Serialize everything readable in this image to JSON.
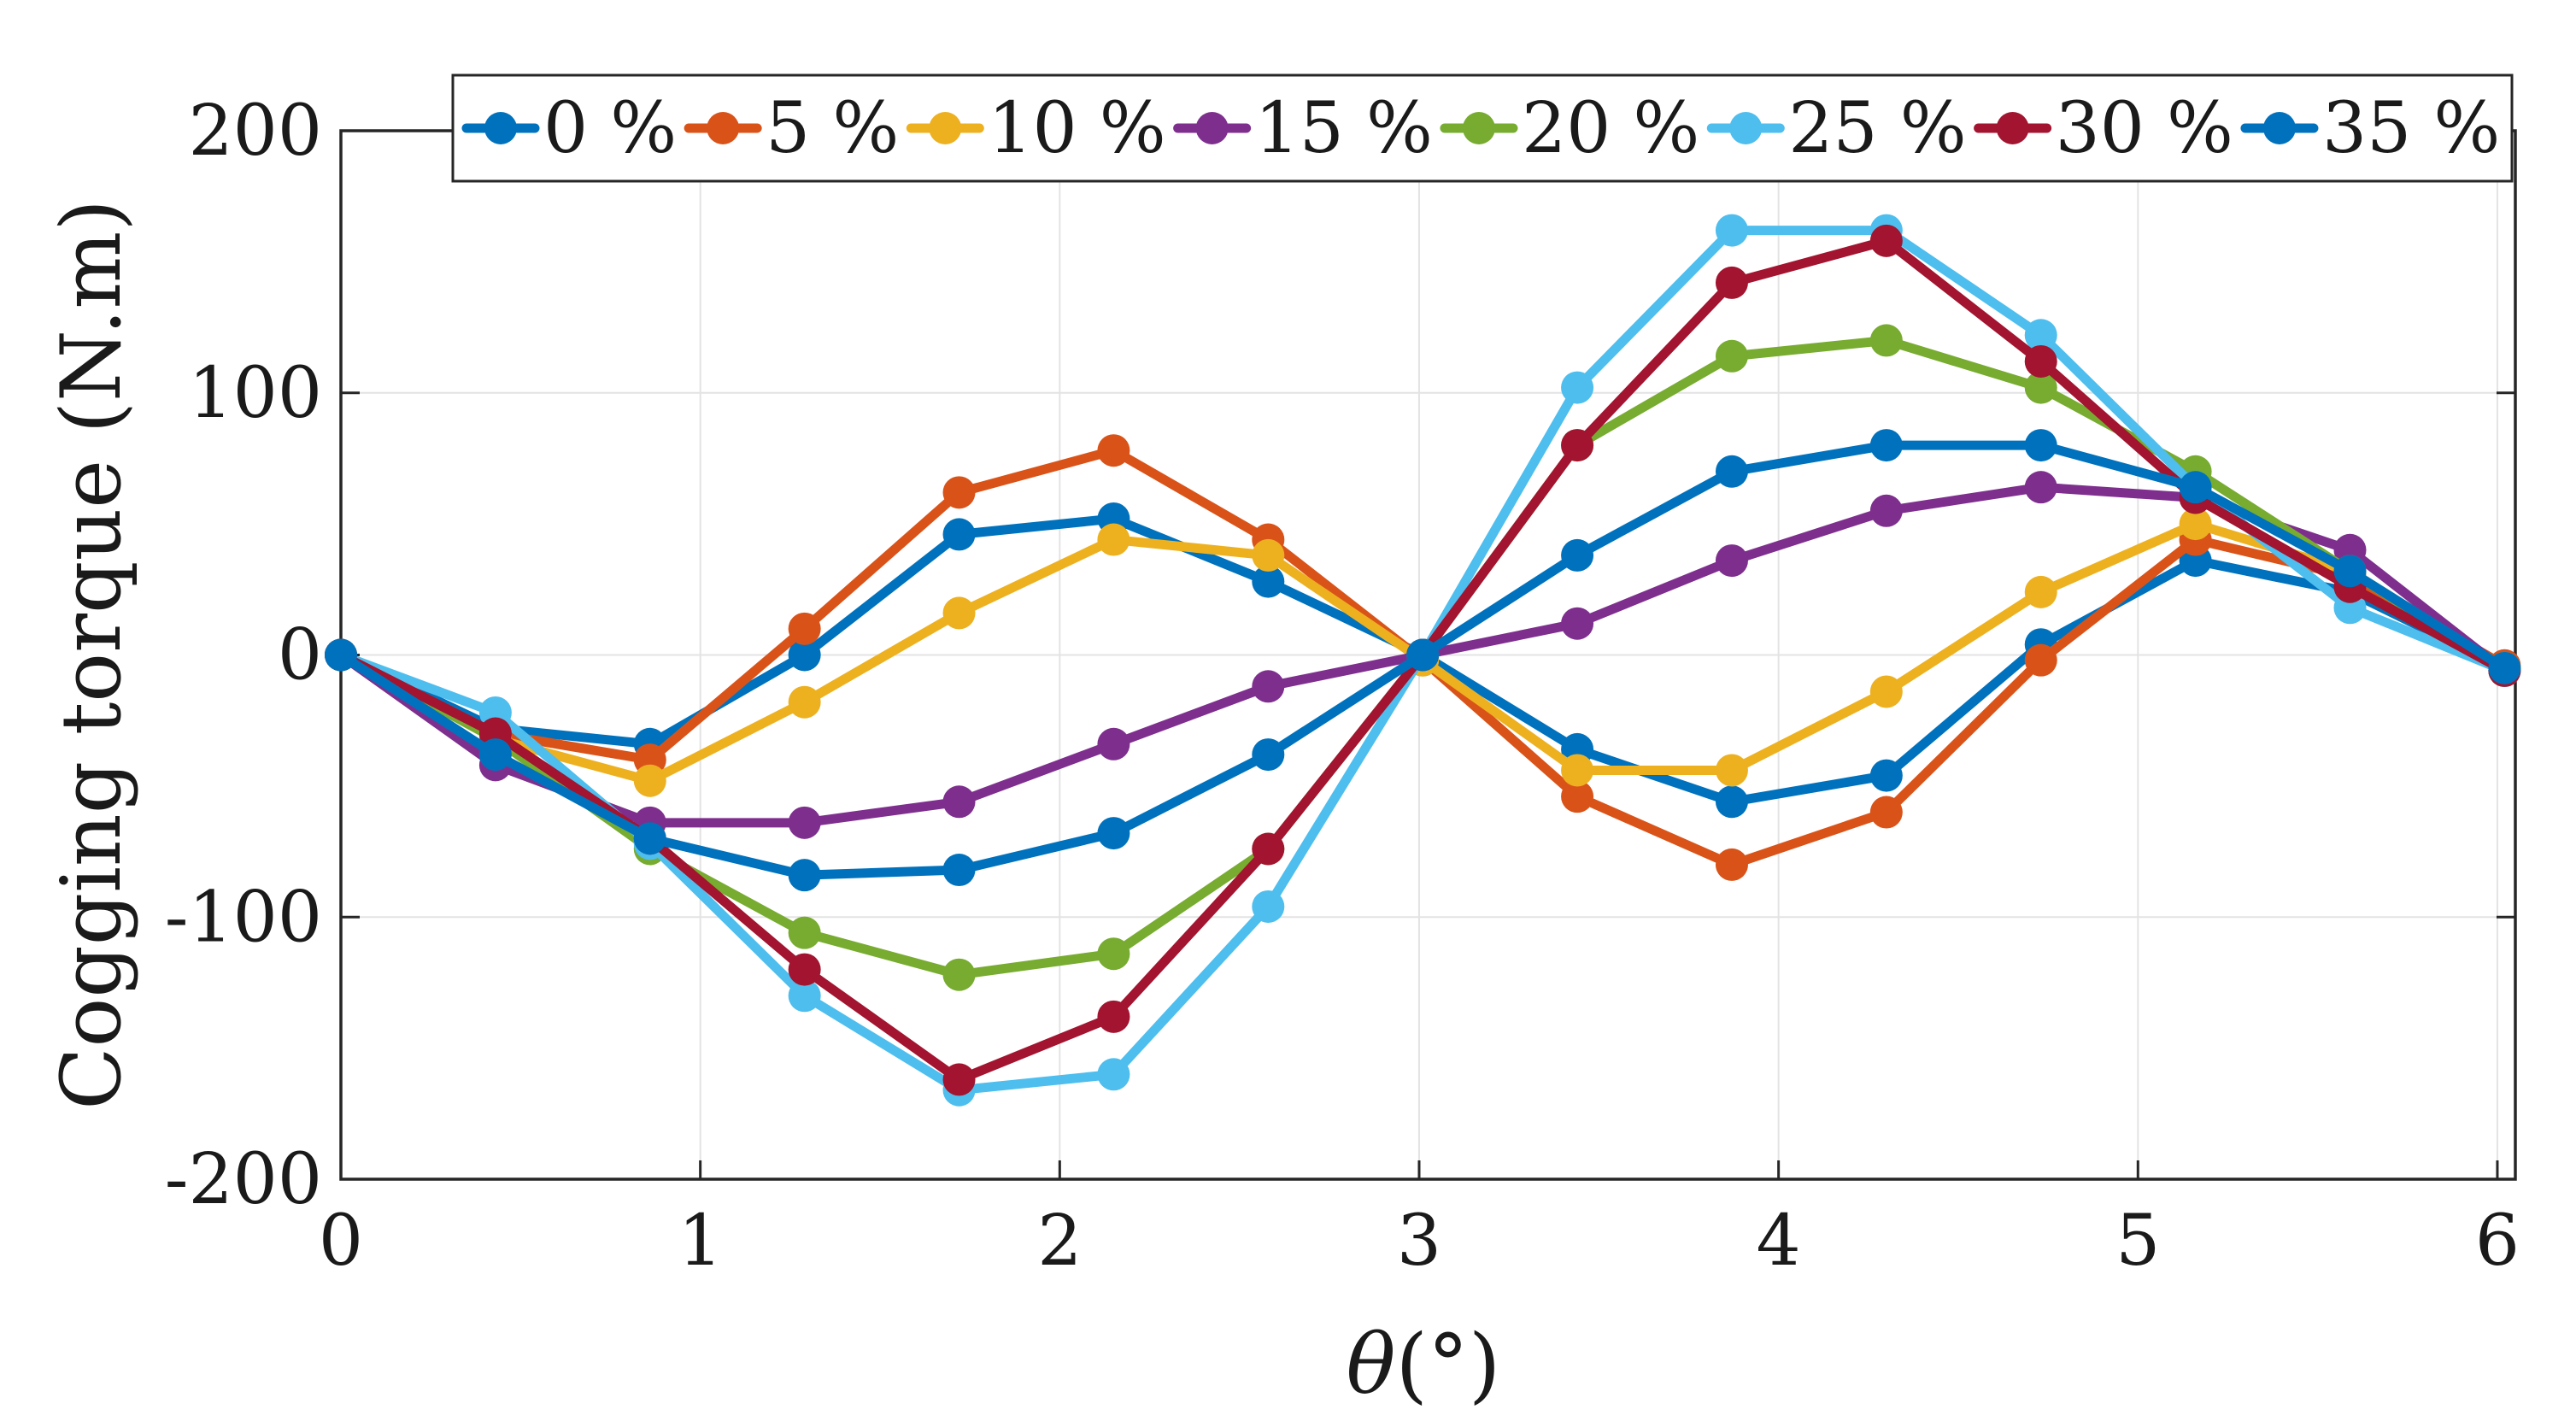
{
  "chart_data": {
    "type": "line",
    "title": "",
    "xlabel": "θ(°)",
    "ylabel": "Cogging torque (N.m)",
    "xlim": [
      0,
      6.05
    ],
    "ylim": [
      -200,
      200
    ],
    "xticks": [
      0,
      1,
      2,
      3,
      4,
      5,
      6
    ],
    "yticks": [
      -200,
      -100,
      0,
      100,
      200
    ],
    "xtick_labels": [
      "0",
      "1",
      "2",
      "3",
      "4",
      "5",
      "6"
    ],
    "ytick_labels": [
      "-200",
      "-100",
      "0",
      "100",
      "200"
    ],
    "grid": true,
    "legend_position": "top",
    "x": [
      0,
      0.43,
      0.86,
      1.29,
      1.72,
      2.15,
      2.58,
      3.01,
      3.44,
      3.87,
      4.3,
      4.73,
      5.16,
      5.59,
      6.02
    ],
    "series": [
      {
        "name": "0 %",
        "color": "#0072BD",
        "values": [
          0,
          -28,
          -34,
          0,
          46,
          52,
          28,
          0,
          -36,
          -56,
          -46,
          4,
          36,
          24,
          -5
        ]
      },
      {
        "name": "5 %",
        "color": "#D95319",
        "values": [
          0,
          -30,
          -40,
          10,
          62,
          78,
          44,
          -2,
          -54,
          -80,
          -60,
          -2,
          44,
          30,
          -4
        ]
      },
      {
        "name": "10 %",
        "color": "#EDB120",
        "values": [
          0,
          -32,
          -48,
          -18,
          16,
          44,
          38,
          -2,
          -44,
          -44,
          -14,
          24,
          50,
          32,
          -5
        ]
      },
      {
        "name": "15 %",
        "color": "#7E2F8E",
        "values": [
          0,
          -42,
          -64,
          -64,
          -56,
          -34,
          -12,
          0,
          12,
          36,
          55,
          64,
          60,
          40,
          -6
        ]
      },
      {
        "name": "20 %",
        "color": "#77AC30",
        "values": [
          0,
          -32,
          -74,
          -106,
          -122,
          -114,
          -74,
          0,
          80,
          114,
          120,
          102,
          70,
          32,
          -6
        ]
      },
      {
        "name": "25 %",
        "color": "#4DBEEE",
        "values": [
          0,
          -22,
          -72,
          -130,
          -166,
          -160,
          -96,
          0,
          102,
          162,
          162,
          122,
          64,
          18,
          -6
        ]
      },
      {
        "name": "30 %",
        "color": "#A2142F",
        "values": [
          0,
          -30,
          -70,
          -120,
          -162,
          -138,
          -74,
          0,
          80,
          142,
          158,
          112,
          60,
          26,
          -6
        ]
      },
      {
        "name": "35 %",
        "color": "#0072BD",
        "values": [
          0,
          -38,
          -70,
          -84,
          -82,
          -68,
          -38,
          0,
          38,
          70,
          80,
          80,
          64,
          32,
          -5
        ]
      }
    ]
  }
}
